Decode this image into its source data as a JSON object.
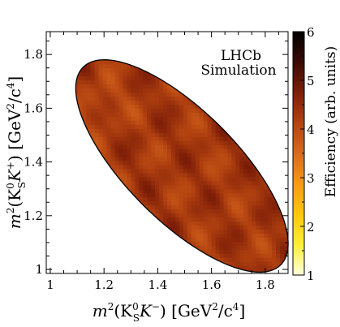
{
  "chart_data": {
    "type": "heatmap",
    "annotation": [
      "LHCb",
      "Simulation"
    ],
    "xlabel": {
      "prefix": "m",
      "sup2": "2",
      "open": "(K",
      "sub": "S",
      "sup0": "0",
      "particle": "K",
      "charge": "−",
      "close": ") [GeV",
      "unit_sup": "2",
      "unit_mid": "/c",
      "unit_sup4": "4",
      "unit_close": "]"
    },
    "ylabel": {
      "prefix": "m",
      "sup2": "2",
      "open": "(K",
      "sub": "S",
      "sup0": "0",
      "particle": "K",
      "charge": "+",
      "close": ") [GeV",
      "unit_sup": "2",
      "unit_mid": "/c",
      "unit_sup4": "4",
      "unit_close": "]"
    },
    "colorbar_label": "Efficiency (arb. units)",
    "xlim": [
      0.985,
      1.885
    ],
    "ylim": [
      0.985,
      1.885
    ],
    "x_ticks": [
      "1",
      "1.2",
      "1.4",
      "1.6",
      "1.8"
    ],
    "x_tick_values": [
      1.0,
      1.2,
      1.4,
      1.6,
      1.8
    ],
    "y_ticks": [
      "1",
      "1.2",
      "1.4",
      "1.6",
      "1.8"
    ],
    "y_tick_values": [
      1.0,
      1.2,
      1.4,
      1.6,
      1.8
    ],
    "colorbar_ticks": [
      "1",
      "2",
      "3",
      "4",
      "5",
      "6"
    ],
    "colorbar_tick_values": [
      1,
      2,
      3,
      4,
      5,
      6
    ],
    "zlim": [
      1,
      6
    ],
    "mean_efficiency": 4.3,
    "colormap": [
      "#ffffdd",
      "#ffef35",
      "#ffc60c",
      "#f79a18",
      "#d86a1e",
      "#b24210",
      "#7e1e08",
      "#3a0a04",
      "#000000"
    ],
    "region": "Dalitz-plot kinematic boundary"
  }
}
